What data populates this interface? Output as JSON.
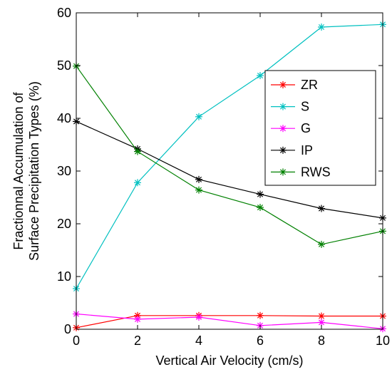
{
  "chart_data": {
    "type": "line",
    "xlabel": "Vertical Air Velocity (cm/s)",
    "ylabel": [
      "Fractionnal Accumulation of",
      "Surface Precipitation Types (%)"
    ],
    "xlim": [
      0,
      10
    ],
    "ylim": [
      0,
      60
    ],
    "xticks": [
      "0",
      "2",
      "4",
      "6",
      "8",
      "10"
    ],
    "yticks": [
      "0",
      "10",
      "20",
      "30",
      "40",
      "50",
      "60"
    ],
    "grid": false,
    "legend_position": "upper-right",
    "x": [
      0,
      2,
      4,
      6,
      8,
      10
    ],
    "series": [
      {
        "name": "ZR",
        "color": "#ff0000",
        "marker": "asterisk",
        "values": [
          0.3,
          2.6,
          2.6,
          2.6,
          2.5,
          2.5
        ]
      },
      {
        "name": "S",
        "color": "#00c0c0",
        "marker": "asterisk",
        "values": [
          7.7,
          27.8,
          40.3,
          48.1,
          57.3,
          57.8
        ]
      },
      {
        "name": "G",
        "color": "#ff00ff",
        "marker": "asterisk",
        "values": [
          2.9,
          1.9,
          2.3,
          0.7,
          1.3,
          0.1
        ]
      },
      {
        "name": "IP",
        "color": "#000000",
        "marker": "asterisk",
        "values": [
          39.4,
          34.2,
          28.4,
          25.6,
          22.9,
          21.1
        ]
      },
      {
        "name": "RWS",
        "color": "#008000",
        "marker": "asterisk",
        "values": [
          49.9,
          33.7,
          26.4,
          23.1,
          16.1,
          18.6
        ]
      }
    ]
  }
}
